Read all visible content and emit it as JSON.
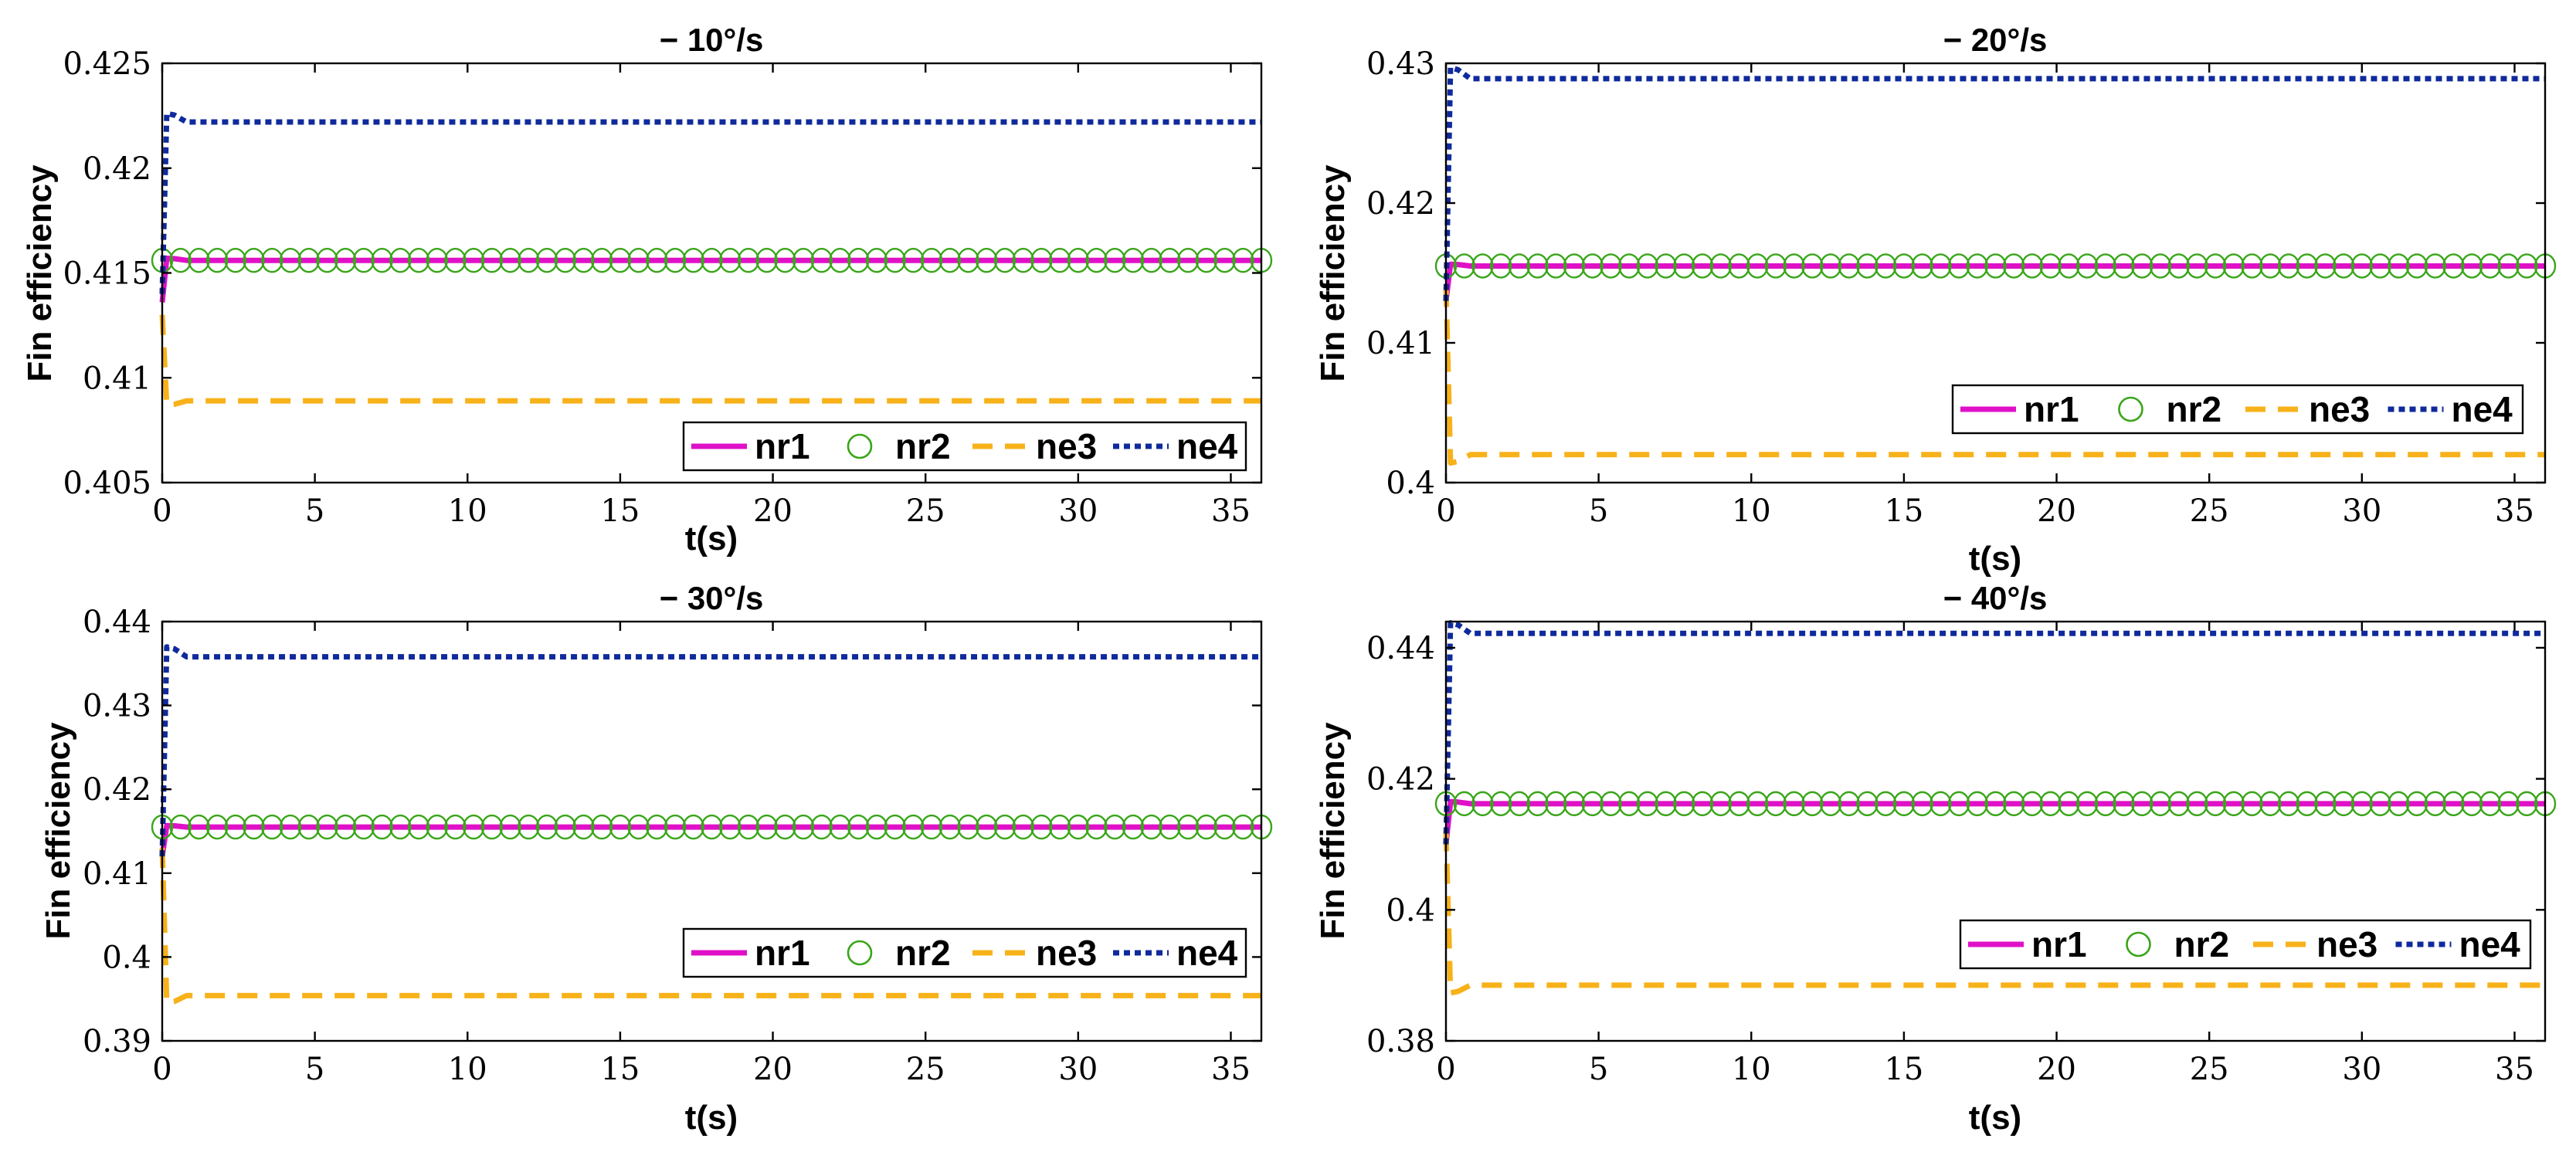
{
  "colors": {
    "nr1": "#e010c8",
    "nr2": "#3aa51a",
    "ne3": "#f7b21a",
    "ne4": "#0f2a9c"
  },
  "chart_data": [
    {
      "type": "line",
      "title": "− 10°/s",
      "xlabel": "t(s)",
      "ylabel": "Fin efficiency",
      "xlim": [
        0,
        36
      ],
      "ylim": [
        0.405,
        0.425
      ],
      "xticks": [
        0,
        5,
        10,
        15,
        20,
        25,
        30,
        35
      ],
      "yticks": [
        0.405,
        0.41,
        0.415,
        0.42,
        0.425
      ],
      "ytick_labels": [
        "0.405",
        "0.41",
        "0.415",
        "0.42",
        "0.425"
      ],
      "legend_position": "bottom-right",
      "series": [
        {
          "name": "nr1",
          "initial": 0.4136,
          "steady": 0.4156
        },
        {
          "name": "nr2",
          "initial": 0.4156,
          "steady": 0.4156
        },
        {
          "name": "ne3",
          "initial": 0.413,
          "steady": 0.4089
        },
        {
          "name": "ne4",
          "initial": 0.414,
          "steady": 0.4222
        }
      ]
    },
    {
      "type": "line",
      "title": "− 20°/s",
      "xlabel": "t(s)",
      "ylabel": "Fin efficiency",
      "xlim": [
        0,
        36
      ],
      "ylim": [
        0.4,
        0.43
      ],
      "xticks": [
        0,
        5,
        10,
        15,
        20,
        25,
        30,
        35
      ],
      "yticks": [
        0.4,
        0.41,
        0.42,
        0.43
      ],
      "ytick_labels": [
        "0.4",
        "0.41",
        "0.42",
        "0.43"
      ],
      "legend_position": "bottom-right",
      "series": [
        {
          "name": "nr1",
          "initial": 0.413,
          "steady": 0.4155
        },
        {
          "name": "nr2",
          "initial": 0.4155,
          "steady": 0.4155
        },
        {
          "name": "ne3",
          "initial": 0.414,
          "steady": 0.402
        },
        {
          "name": "ne4",
          "initial": 0.413,
          "steady": 0.4289
        }
      ]
    },
    {
      "type": "line",
      "title": "− 30°/s",
      "xlabel": "t(s)",
      "ylabel": "Fin efficiency",
      "xlim": [
        0,
        36
      ],
      "ylim": [
        0.39,
        0.44
      ],
      "xticks": [
        0,
        5,
        10,
        15,
        20,
        25,
        30,
        35
      ],
      "yticks": [
        0.39,
        0.4,
        0.41,
        0.42,
        0.43,
        0.44
      ],
      "ytick_labels": [
        "0.39",
        "0.4",
        "0.41",
        "0.42",
        "0.43",
        "0.44"
      ],
      "legend_position": "bottom-right",
      "series": [
        {
          "name": "nr1",
          "initial": 0.412,
          "steady": 0.4155
        },
        {
          "name": "nr2",
          "initial": 0.4155,
          "steady": 0.4155
        },
        {
          "name": "ne3",
          "initial": 0.413,
          "steady": 0.3954
        },
        {
          "name": "ne4",
          "initial": 0.412,
          "steady": 0.4358
        }
      ]
    },
    {
      "type": "line",
      "title": "− 40°/s",
      "xlabel": "t(s)",
      "ylabel": "Fin efficiency",
      "xlim": [
        0,
        36
      ],
      "ylim": [
        0.38,
        0.444
      ],
      "xticks": [
        0,
        5,
        10,
        15,
        20,
        25,
        30,
        35
      ],
      "yticks": [
        0.38,
        0.4,
        0.42,
        0.44
      ],
      "ytick_labels": [
        "0.38",
        "0.4",
        "0.42",
        "0.44"
      ],
      "legend_position": "bottom-right",
      "series": [
        {
          "name": "nr1",
          "initial": 0.41,
          "steady": 0.4162
        },
        {
          "name": "nr2",
          "initial": 0.4162,
          "steady": 0.4162
        },
        {
          "name": "ne3",
          "initial": 0.412,
          "steady": 0.3885
        },
        {
          "name": "ne4",
          "initial": 0.41,
          "steady": 0.4422
        }
      ]
    }
  ]
}
